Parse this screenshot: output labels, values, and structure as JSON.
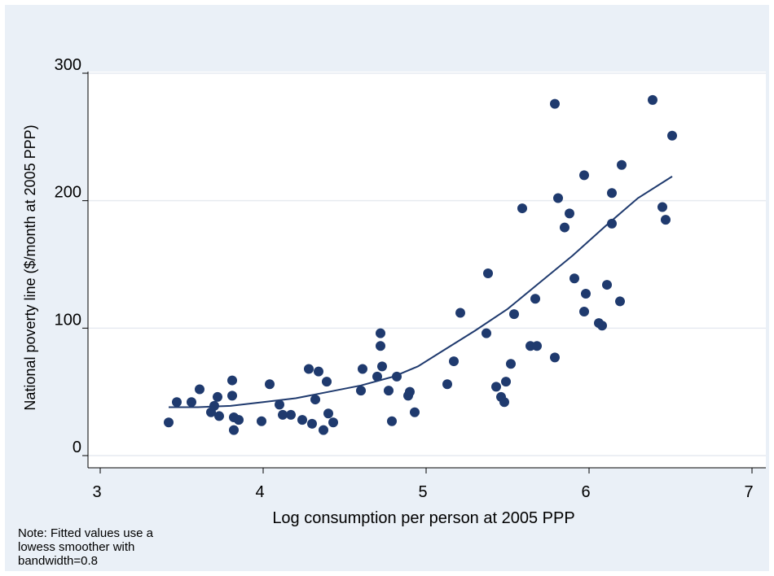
{
  "chart_data": {
    "type": "scatter",
    "xlabel": "Log consumption per person at 2005 PPP",
    "ylabel": "National poverty line ($/month at 2005 PPP)",
    "xlim": [
      3,
      7
    ],
    "ylim": [
      0,
      300
    ],
    "xticks": [
      3,
      4,
      5,
      6,
      7
    ],
    "yticks": [
      0,
      100,
      200,
      300
    ],
    "grid": "horizontal",
    "colors": {
      "marker": "#1f3a6e",
      "line": "#1f3a6e",
      "outer_bg": "#eaf0f7",
      "plot_bg": "#ffffff",
      "grid": "#e6eaf0"
    },
    "points": [
      {
        "x": 3.42,
        "y": 26
      },
      {
        "x": 3.47,
        "y": 42
      },
      {
        "x": 3.56,
        "y": 42
      },
      {
        "x": 3.61,
        "y": 52
      },
      {
        "x": 3.68,
        "y": 34
      },
      {
        "x": 3.7,
        "y": 39
      },
      {
        "x": 3.72,
        "y": 46
      },
      {
        "x": 3.73,
        "y": 31
      },
      {
        "x": 3.81,
        "y": 59
      },
      {
        "x": 3.81,
        "y": 47
      },
      {
        "x": 3.82,
        "y": 30
      },
      {
        "x": 3.82,
        "y": 20
      },
      {
        "x": 3.85,
        "y": 28
      },
      {
        "x": 3.99,
        "y": 27
      },
      {
        "x": 4.04,
        "y": 56
      },
      {
        "x": 4.1,
        "y": 40
      },
      {
        "x": 4.12,
        "y": 32
      },
      {
        "x": 4.17,
        "y": 32
      },
      {
        "x": 4.24,
        "y": 28
      },
      {
        "x": 4.28,
        "y": 68
      },
      {
        "x": 4.3,
        "y": 25
      },
      {
        "x": 4.32,
        "y": 44
      },
      {
        "x": 4.34,
        "y": 66
      },
      {
        "x": 4.37,
        "y": 20
      },
      {
        "x": 4.39,
        "y": 58
      },
      {
        "x": 4.4,
        "y": 33
      },
      {
        "x": 4.43,
        "y": 26
      },
      {
        "x": 4.6,
        "y": 51
      },
      {
        "x": 4.61,
        "y": 68
      },
      {
        "x": 4.7,
        "y": 62
      },
      {
        "x": 4.72,
        "y": 96
      },
      {
        "x": 4.72,
        "y": 86
      },
      {
        "x": 4.73,
        "y": 70
      },
      {
        "x": 4.77,
        "y": 51
      },
      {
        "x": 4.79,
        "y": 27
      },
      {
        "x": 4.82,
        "y": 62
      },
      {
        "x": 4.89,
        "y": 47
      },
      {
        "x": 4.9,
        "y": 50
      },
      {
        "x": 4.93,
        "y": 34
      },
      {
        "x": 5.13,
        "y": 56
      },
      {
        "x": 5.17,
        "y": 74
      },
      {
        "x": 5.21,
        "y": 112
      },
      {
        "x": 5.37,
        "y": 96
      },
      {
        "x": 5.38,
        "y": 143
      },
      {
        "x": 5.43,
        "y": 54
      },
      {
        "x": 5.46,
        "y": 46
      },
      {
        "x": 5.48,
        "y": 42
      },
      {
        "x": 5.49,
        "y": 58
      },
      {
        "x": 5.52,
        "y": 72
      },
      {
        "x": 5.54,
        "y": 111
      },
      {
        "x": 5.59,
        "y": 194
      },
      {
        "x": 5.64,
        "y": 86
      },
      {
        "x": 5.67,
        "y": 123
      },
      {
        "x": 5.68,
        "y": 86
      },
      {
        "x": 5.79,
        "y": 77
      },
      {
        "x": 5.79,
        "y": 276
      },
      {
        "x": 5.81,
        "y": 202
      },
      {
        "x": 5.85,
        "y": 179
      },
      {
        "x": 5.88,
        "y": 190
      },
      {
        "x": 5.91,
        "y": 139
      },
      {
        "x": 5.97,
        "y": 220
      },
      {
        "x": 5.97,
        "y": 113
      },
      {
        "x": 5.98,
        "y": 127
      },
      {
        "x": 6.06,
        "y": 104
      },
      {
        "x": 6.08,
        "y": 102
      },
      {
        "x": 6.11,
        "y": 134
      },
      {
        "x": 6.14,
        "y": 206
      },
      {
        "x": 6.14,
        "y": 182
      },
      {
        "x": 6.19,
        "y": 121
      },
      {
        "x": 6.2,
        "y": 228
      },
      {
        "x": 6.39,
        "y": 279
      },
      {
        "x": 6.45,
        "y": 195
      },
      {
        "x": 6.47,
        "y": 185
      },
      {
        "x": 6.51,
        "y": 251
      }
    ],
    "fitted_line": {
      "x": [
        3.42,
        3.6,
        3.8,
        4.0,
        4.2,
        4.4,
        4.6,
        4.8,
        4.95,
        5.1,
        5.3,
        5.5,
        5.7,
        5.9,
        6.1,
        6.3,
        6.51
      ],
      "y": [
        38,
        38,
        39,
        42,
        45,
        50,
        55,
        62,
        70,
        82,
        98,
        115,
        136,
        157,
        180,
        202,
        219
      ]
    },
    "note": "Note: Fitted values use a\nlowess smoother with\nbandwidth=0.8"
  }
}
